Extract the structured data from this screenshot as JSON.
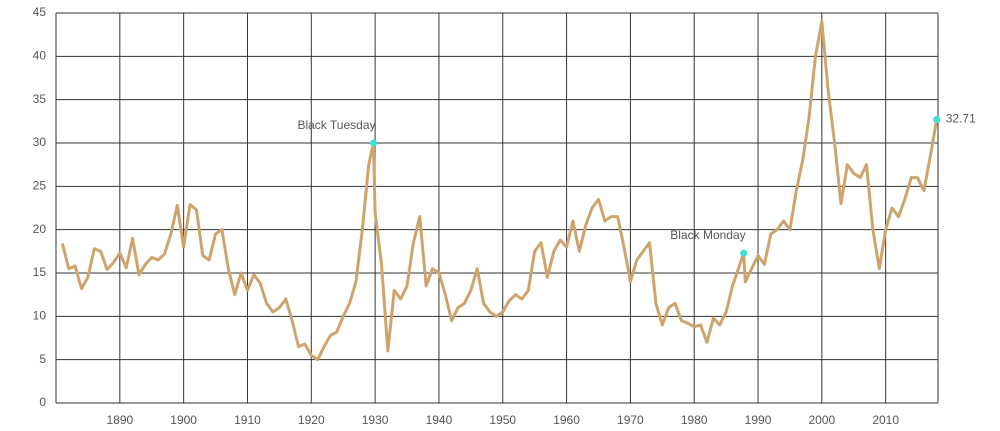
{
  "chart_data": {
    "type": "line",
    "x": [
      1881,
      1882,
      1883,
      1884,
      1885,
      1886,
      1887,
      1888,
      1889,
      1890,
      1891,
      1892,
      1893,
      1894,
      1895,
      1896,
      1897,
      1898,
      1899,
      1900,
      1901,
      1902,
      1903,
      1904,
      1905,
      1906,
      1907,
      1908,
      1909,
      1910,
      1911,
      1912,
      1913,
      1914,
      1915,
      1916,
      1917,
      1918,
      1919,
      1920,
      1921,
      1922,
      1923,
      1924,
      1925,
      1926,
      1927,
      1928,
      1929,
      1929.75,
      1930,
      1931,
      1932,
      1933,
      1934,
      1935,
      1936,
      1937,
      1938,
      1939,
      1940,
      1941,
      1942,
      1943,
      1944,
      1945,
      1946,
      1947,
      1948,
      1949,
      1950,
      1951,
      1952,
      1953,
      1954,
      1955,
      1956,
      1957,
      1958,
      1959,
      1960,
      1961,
      1962,
      1963,
      1964,
      1965,
      1966,
      1967,
      1968,
      1969,
      1970,
      1971,
      1972,
      1973,
      1974,
      1975,
      1976,
      1977,
      1978,
      1979,
      1980,
      1981,
      1982,
      1983,
      1984,
      1985,
      1986,
      1987.75,
      1988,
      1989,
      1990,
      1991,
      1992,
      1993,
      1994,
      1995,
      1996,
      1997,
      1998,
      1999,
      2000,
      2001,
      2002,
      2003,
      2004,
      2005,
      2006,
      2007,
      2008,
      2009,
      2010,
      2011,
      2012,
      2013,
      2014,
      2015,
      2016,
      2017,
      2018
    ],
    "values": [
      18.4,
      15.5,
      15.8,
      13.2,
      14.5,
      17.8,
      17.5,
      15.4,
      16.2,
      17.3,
      15.6,
      19.0,
      14.8,
      16.0,
      16.8,
      16.5,
      17.2,
      19.5,
      22.8,
      18.0,
      22.9,
      22.3,
      17.0,
      16.5,
      19.5,
      20.0,
      15.5,
      12.5,
      15.0,
      13.0,
      14.8,
      13.8,
      11.5,
      10.5,
      11.0,
      12.0,
      9.5,
      6.5,
      6.8,
      5.5,
      5.0,
      6.5,
      7.8,
      8.2,
      10.0,
      11.5,
      14.0,
      20.0,
      27.5,
      30.0,
      22.0,
      16.0,
      6.0,
      13.0,
      12.0,
      13.5,
      18.5,
      21.5,
      13.5,
      15.5,
      15.0,
      12.5,
      9.5,
      11.0,
      11.5,
      13.0,
      15.5,
      11.5,
      10.5,
      10.0,
      10.5,
      11.8,
      12.5,
      12.0,
      13.0,
      17.5,
      18.5,
      14.5,
      17.5,
      18.8,
      18.0,
      21.0,
      17.5,
      20.5,
      22.5,
      23.5,
      21.0,
      21.5,
      21.5,
      18.0,
      14.0,
      16.5,
      17.5,
      18.5,
      11.5,
      9.0,
      11.0,
      11.5,
      9.5,
      9.2,
      8.8,
      9.0,
      7.0,
      9.8,
      9.0,
      10.5,
      13.5,
      17.3,
      14.0,
      15.5,
      17.0,
      16.0,
      19.5,
      20.0,
      21.0,
      20.0,
      24.5,
      28.0,
      33.0,
      40.0,
      44.0,
      36.0,
      30.0,
      23.0,
      27.5,
      26.5,
      26.0,
      27.5,
      20.0,
      15.5,
      20.0,
      22.5,
      21.5,
      23.5,
      26.0,
      26.0,
      24.5,
      28.5,
      32.71
    ],
    "color": "#cfa46c",
    "marker_color": "#3ee0d6",
    "annotations": [
      {
        "text": "Black Tuesday",
        "x": 1929.75,
        "y": 30
      },
      {
        "text": "Black Monday",
        "x": 1987.75,
        "y": 17.3
      }
    ],
    "xlim": [
      1880,
      2018.2
    ],
    "xticks": [
      1890,
      1900,
      1910,
      1920,
      1930,
      1940,
      1950,
      1960,
      1970,
      1980,
      1990,
      2000,
      2010
    ],
    "ylim": [
      0,
      45
    ],
    "yticks": [
      0,
      5,
      10,
      15,
      20,
      25,
      30,
      35,
      40,
      45
    ],
    "grid": true
  }
}
